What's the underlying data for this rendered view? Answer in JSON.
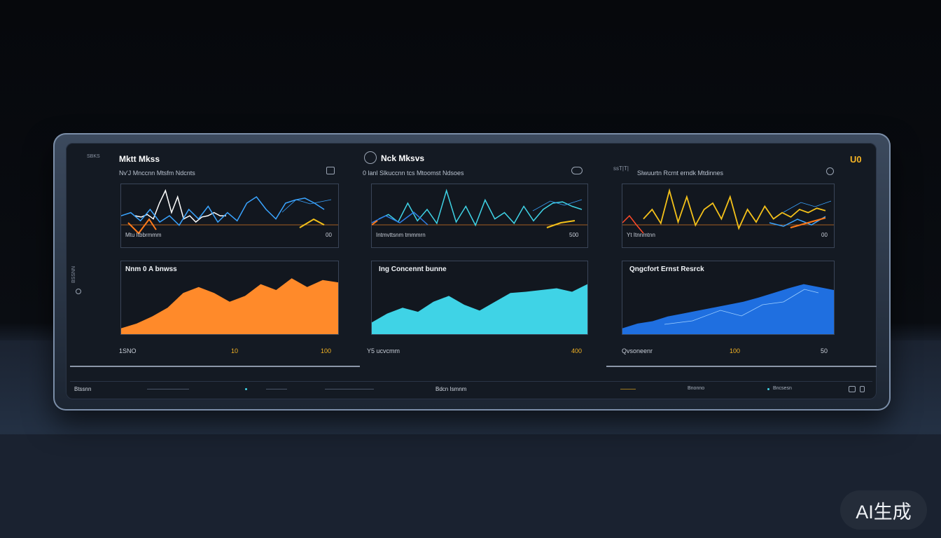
{
  "colors": {
    "orange": "#ff7a1a",
    "cyan": "#3fd3e6",
    "blue": "#1f6fe0",
    "yellow": "#f4c11a",
    "lightblue": "#3aa4ff"
  },
  "panels": [
    {
      "id": "left",
      "title": "Mktt Mkss",
      "subtitle": "Nv'J Mnccnn Mtsfm Ndcnts",
      "chart_label": "Mtu Itbbrmmm",
      "chart_value": "00",
      "area_title": "Nnm 0 A bnwss",
      "axis_left": "1SNO",
      "axis_mid": "10",
      "axis_right": "100"
    },
    {
      "id": "middle",
      "title": "Nck Mksvs",
      "subtitle": "0 lanl Slkuccnn tcs Mtoomst Ndsoes",
      "chart_label": "Intmvttsnm tmmmrn",
      "chart_value": "500",
      "area_title": "Ing Concennt bunne",
      "axis_left": "Y5 ucvcmm",
      "axis_mid": "",
      "axis_right": "400"
    },
    {
      "id": "right",
      "title": "",
      "subtitle": "Slwuurtn Rcrnt erndk Mtdinnes",
      "chart_label": "Yt Itnnmtnn",
      "chart_value": "00",
      "area_title": "Qngcfort Ernst Resrck",
      "axis_left": "Qvsoneenr",
      "axis_mid": "100",
      "axis_right": "50"
    }
  ],
  "corner_logo": "U0",
  "side_label": "BSSNN",
  "tiny_top_left": "SBKS",
  "tiny_right_top": "ssT|T|",
  "status": [
    "Btssnn",
    "Bdcn Ismnm",
    "Bnonno",
    "Bncsesn"
  ],
  "watermark": "AI生成",
  "chart_data": [
    {
      "type": "line",
      "title": "",
      "series": [
        {
          "color": "#ffffff",
          "values": [
            50,
            52,
            48,
            55,
            30,
            10,
            45,
            20,
            55,
            50,
            60,
            52,
            50,
            45,
            50,
            50
          ]
        },
        {
          "color": "#3aa4ff",
          "values": [
            50,
            45,
            58,
            40,
            60,
            50,
            65,
            40,
            55,
            35,
            60,
            45,
            58,
            30,
            20,
            40,
            55,
            30,
            25,
            22,
            30,
            40
          ]
        }
      ]
    },
    {
      "type": "line",
      "title": "",
      "series": [
        {
          "color": "#3fd3e6",
          "values": [
            55,
            48,
            60,
            30,
            58,
            40,
            62,
            10,
            60,
            35,
            65,
            25,
            55,
            45,
            62,
            35,
            58,
            40,
            30,
            28,
            35,
            40
          ]
        }
      ]
    },
    {
      "type": "line",
      "title": "",
      "series": [
        {
          "color": "#f4c11a",
          "values": [
            55,
            40,
            62,
            10,
            60,
            20,
            65,
            40,
            30,
            55,
            20,
            70,
            40,
            60,
            35,
            55,
            45,
            52,
            40,
            45,
            38,
            42
          ]
        }
      ]
    },
    {
      "type": "area",
      "title": "Nnm 0 A bnwss",
      "values": [
        10,
        18,
        30,
        45,
        70,
        80,
        70,
        55,
        65,
        85,
        75,
        95,
        80,
        92,
        88
      ]
    },
    {
      "type": "area",
      "title": "Ing Concennt bunne",
      "values": [
        20,
        35,
        45,
        38,
        55,
        65,
        50,
        40,
        55,
        70,
        72,
        75,
        78,
        72,
        85
      ]
    },
    {
      "type": "area",
      "title": "Qngcfort Ernst Resrck",
      "values": [
        10,
        18,
        22,
        30,
        35,
        40,
        45,
        50,
        55,
        62,
        70,
        78,
        85,
        80,
        75
      ]
    }
  ]
}
